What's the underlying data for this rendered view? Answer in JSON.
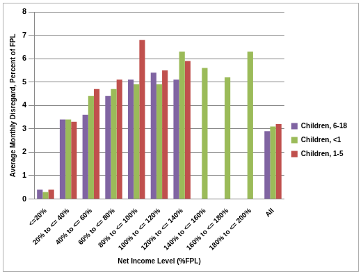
{
  "chart_data": {
    "type": "bar",
    "x_label": "Net Income Level (%FPL)",
    "y_label": "Average Monthly Disregard, Percent of FPL",
    "categories": [
      "<=20%",
      "20% to <= 40%",
      "40% to <= 60%",
      "60% to <= 80%",
      "80% to <= 100%",
      "100% to <= 120%",
      "120% to <= 140%",
      "140% to <= 160%",
      "160% to <= 180%",
      "180% to <= 200%",
      "All"
    ],
    "series": [
      {
        "name": "Children, 6-18",
        "color": "#8064a2",
        "values": [
          0.4,
          3.4,
          3.6,
          4.4,
          5.1,
          5.4,
          5.1,
          null,
          null,
          null,
          2.9
        ]
      },
      {
        "name": "Children, <1",
        "color": "#9bbb59",
        "values": [
          0.3,
          3.4,
          4.4,
          4.7,
          4.9,
          4.9,
          6.3,
          5.6,
          5.2,
          6.3,
          3.1
        ]
      },
      {
        "name": "Children, 1-5",
        "color": "#c0504d",
        "values": [
          0.4,
          3.3,
          4.7,
          5.1,
          6.8,
          5.5,
          5.9,
          null,
          null,
          null,
          3.2
        ]
      }
    ],
    "ylim": [
      0,
      8
    ],
    "yticks": [
      0,
      1,
      2,
      3,
      4,
      5,
      6,
      7,
      8
    ],
    "grid": true,
    "legend": "right"
  }
}
